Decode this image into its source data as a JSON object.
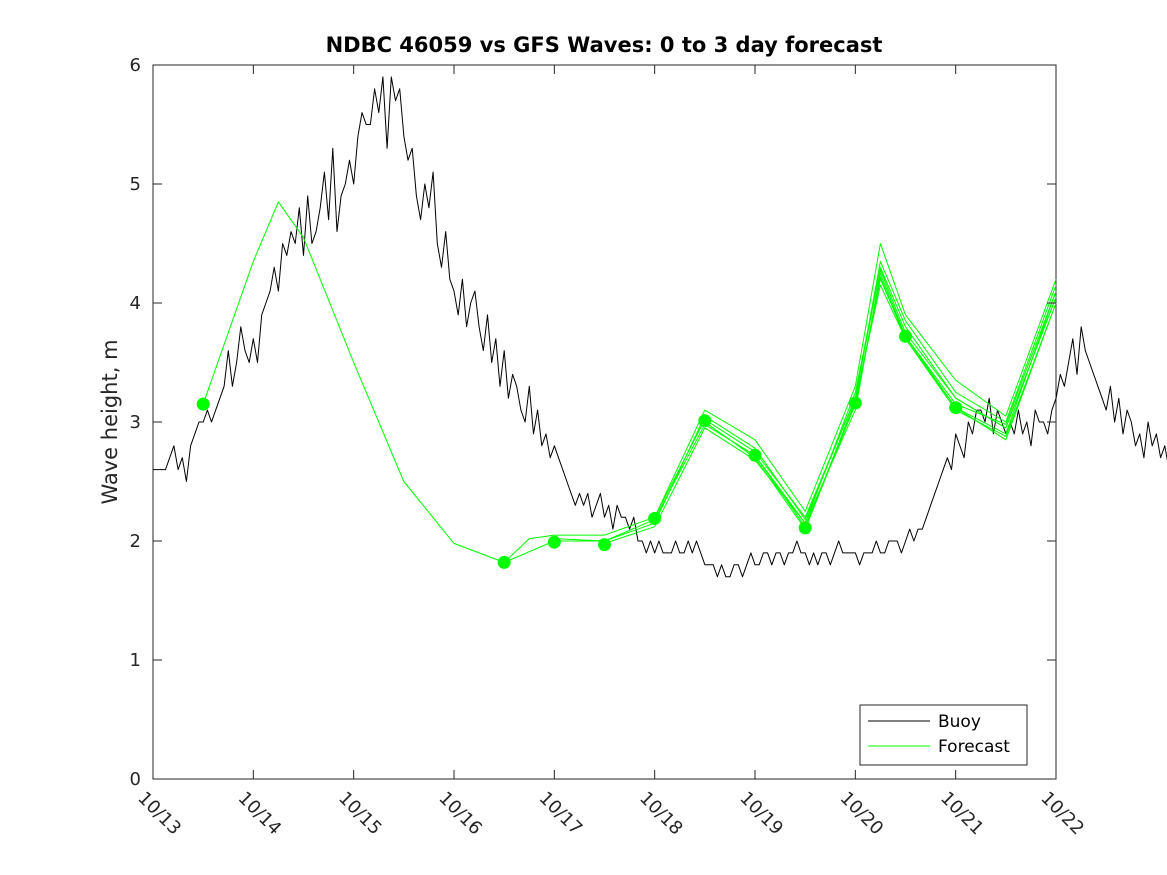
{
  "chart_data": {
    "type": "line",
    "title": "NDBC 46059 vs GFS Waves: 0 to 3 day forecast",
    "xlabel": "",
    "ylabel": "Wave height, m",
    "xlim": [
      0,
      9
    ],
    "ylim": [
      0,
      6
    ],
    "x_tick_values": [
      0,
      1,
      2,
      3,
      4,
      5,
      6,
      7,
      8,
      9
    ],
    "x_tick_labels": [
      "10/13",
      "10/14",
      "10/15",
      "10/16",
      "10/17",
      "10/18",
      "10/19",
      "10/20",
      "10/21",
      "10/22"
    ],
    "y_tick_values": [
      0,
      1,
      2,
      3,
      4,
      5,
      6
    ],
    "y_tick_labels": [
      "0",
      "1",
      "2",
      "3",
      "4",
      "5",
      "6"
    ],
    "x_units": "days since 10/13 00:00",
    "grid": false,
    "legend": {
      "position": "bottom-right",
      "entries": [
        {
          "label": "Buoy",
          "color": "#000000"
        },
        {
          "label": "Forecast",
          "color": "#00ff00"
        }
      ]
    },
    "colors": {
      "buoy": "#000000",
      "forecast": "#00ff00",
      "axes": "#262626"
    },
    "series": [
      {
        "name": "Buoy",
        "color": "#000000",
        "x_start": 0,
        "x_step": 0.04167,
        "values": [
          2.6,
          2.6,
          2.6,
          2.6,
          2.7,
          2.8,
          2.6,
          2.7,
          2.5,
          2.8,
          2.9,
          3.0,
          3.0,
          3.1,
          3.0,
          3.1,
          3.2,
          3.3,
          3.6,
          3.3,
          3.5,
          3.8,
          3.6,
          3.5,
          3.7,
          3.5,
          3.9,
          4.0,
          4.1,
          4.3,
          4.1,
          4.5,
          4.4,
          4.6,
          4.5,
          4.8,
          4.4,
          4.9,
          4.5,
          4.6,
          4.8,
          5.1,
          4.7,
          5.3,
          4.6,
          4.9,
          5.0,
          5.2,
          5.0,
          5.4,
          5.6,
          5.5,
          5.5,
          5.8,
          5.6,
          5.9,
          5.3,
          5.9,
          5.7,
          5.8,
          5.4,
          5.2,
          5.3,
          4.9,
          4.7,
          5.0,
          4.8,
          5.1,
          4.5,
          4.3,
          4.6,
          4.2,
          4.1,
          3.9,
          4.2,
          3.8,
          4.0,
          4.1,
          3.8,
          3.6,
          3.9,
          3.5,
          3.7,
          3.3,
          3.6,
          3.2,
          3.4,
          3.3,
          3.1,
          3.0,
          3.3,
          2.9,
          3.1,
          2.8,
          2.9,
          2.7,
          2.8,
          2.7,
          2.6,
          2.5,
          2.4,
          2.3,
          2.4,
          2.3,
          2.4,
          2.2,
          2.3,
          2.4,
          2.2,
          2.3,
          2.1,
          2.3,
          2.2,
          2.2,
          2.1,
          2.2,
          2.0,
          2.0,
          1.9,
          2.0,
          1.9,
          2.0,
          1.9,
          1.9,
          1.9,
          2.0,
          1.9,
          1.9,
          2.0,
          1.9,
          2.0,
          1.9,
          1.8,
          1.8,
          1.8,
          1.7,
          1.8,
          1.7,
          1.7,
          1.8,
          1.8,
          1.7,
          1.8,
          1.9,
          1.8,
          1.8,
          1.9,
          1.9,
          1.8,
          1.9,
          1.9,
          1.8,
          1.9,
          1.9,
          2.0,
          1.9,
          1.9,
          1.8,
          1.9,
          1.8,
          1.9,
          1.9,
          1.8,
          1.9,
          2.0,
          1.9,
          1.9,
          1.9,
          1.9,
          1.8,
          1.9,
          1.9,
          1.9,
          2.0,
          1.9,
          1.9,
          2.0,
          2.0,
          2.0,
          1.9,
          2.0,
          2.1,
          2.0,
          2.1,
          2.1,
          2.2,
          2.3,
          2.4,
          2.5,
          2.6,
          2.7,
          2.6,
          2.9,
          2.8,
          2.7,
          3.0,
          2.9,
          3.1,
          3.1,
          3.0,
          3.2,
          2.9,
          3.1,
          3.0,
          2.9,
          3.0,
          2.9,
          3.1,
          2.9,
          3.0,
          2.8,
          3.1,
          3.0,
          3.0,
          2.9,
          3.1,
          3.2,
          3.4,
          3.3,
          3.5,
          3.7,
          3.4,
          3.8,
          3.6,
          3.5,
          3.4,
          3.3,
          3.2,
          3.1,
          3.3,
          3.0,
          3.2,
          2.9,
          3.1,
          3.0,
          2.8,
          2.9,
          2.7,
          3.0,
          2.8,
          2.9,
          2.7,
          2.8,
          2.6,
          2.7,
          2.5,
          2.7,
          2.5,
          2.6,
          2.4,
          2.4,
          2.5,
          2.3,
          2.4,
          2.3,
          2.4,
          2.3,
          2.4,
          2.4,
          2.3,
          2.5,
          2.3,
          2.4,
          2.6,
          3.0,
          3.3,
          3.8,
          4.3,
          4.6,
          4.8,
          4.7,
          5.0,
          4.8,
          5.0,
          4.7,
          4.9,
          4.8,
          5.0,
          4.5,
          4.4,
          4.3,
          4.0,
          4.2,
          4.0,
          3.9,
          3.8,
          3.6,
          3.7,
          3.8,
          3.5,
          3.7,
          3.6,
          3.5,
          3.7,
          3.6,
          3.6,
          3.5,
          3.4,
          3.5,
          3.4,
          3.3,
          3.4,
          3.3
        ]
      },
      {
        "name": "Forecast",
        "color": "#00ff00",
        "x": [
          0.5,
          1.0,
          1.25,
          1.5,
          2.0,
          2.5,
          3.0,
          3.5,
          4.0,
          4.5,
          5.0,
          5.5,
          6.0,
          6.5,
          7.0,
          7.25,
          7.5,
          8.0,
          8.5,
          9.0
        ],
        "values": [
          3.15,
          4.35,
          4.85,
          4.55,
          3.5,
          2.5,
          1.98,
          1.82,
          2.0,
          2.0,
          2.18,
          2.98,
          2.72,
          2.12,
          3.15,
          4.2,
          3.72,
          3.12,
          2.9,
          4.1
        ]
      },
      {
        "name": "Forecast",
        "color": "#00ff00",
        "x": [
          3.5,
          3.75,
          4.0,
          4.5,
          5.0,
          5.5,
          6.0,
          6.5,
          7.0,
          7.25,
          7.5,
          8.0,
          8.5,
          9.0
        ],
        "values": [
          1.82,
          2.02,
          2.05,
          2.05,
          2.2,
          3.1,
          2.85,
          2.25,
          3.3,
          4.5,
          3.9,
          3.35,
          3.05,
          4.2
        ]
      },
      {
        "name": "Forecast",
        "color": "#00ff00",
        "x": [
          4.0,
          4.5,
          5.0,
          5.5,
          6.0,
          6.5,
          7.0,
          7.25,
          7.5,
          8.0,
          8.5,
          9.0
        ],
        "values": [
          2.02,
          2.0,
          2.15,
          3.05,
          2.78,
          2.18,
          3.2,
          4.3,
          3.8,
          3.2,
          2.95,
          4.05
        ]
      },
      {
        "name": "Forecast",
        "color": "#00ff00",
        "x": [
          4.5,
          5.0,
          5.5,
          6.0,
          6.5,
          7.0,
          7.25,
          7.5,
          8.0,
          8.5,
          9.0
        ],
        "values": [
          1.98,
          2.12,
          2.95,
          2.68,
          2.15,
          3.1,
          4.25,
          3.72,
          3.15,
          2.98,
          4.1
        ]
      },
      {
        "name": "Forecast",
        "color": "#00ff00",
        "x": [
          5.0,
          5.5,
          6.0,
          6.5,
          7.0,
          7.25,
          7.5,
          8.0,
          8.5,
          9.0
        ],
        "values": [
          2.2,
          3.02,
          2.75,
          2.2,
          3.2,
          4.35,
          3.85,
          3.25,
          3.0,
          4.15
        ]
      },
      {
        "name": "Forecast",
        "color": "#00ff00",
        "x": [
          5.5,
          6.0,
          6.5,
          7.0,
          7.25,
          7.5,
          8.0,
          8.5,
          9.0
        ],
        "values": [
          3.0,
          2.7,
          2.1,
          3.18,
          4.15,
          3.7,
          3.1,
          2.88,
          4.0
        ]
      },
      {
        "name": "Forecast",
        "color": "#00ff00",
        "x": [
          6.0,
          6.5,
          7.0,
          7.25,
          7.5,
          8.0,
          8.5,
          9.0
        ],
        "values": [
          2.72,
          2.15,
          3.25,
          4.28,
          3.75,
          3.2,
          2.95,
          4.05
        ]
      },
      {
        "name": "Forecast",
        "color": "#00ff00",
        "x": [
          6.5,
          7.0,
          7.25,
          7.5,
          8.0,
          8.5,
          9.0
        ],
        "values": [
          2.1,
          3.15,
          4.22,
          3.7,
          3.12,
          2.85,
          4.0
        ]
      }
    ],
    "markers": {
      "name": "Forecast analysis points",
      "color": "#00ff00",
      "x": [
        0.5,
        3.5,
        4.0,
        4.5,
        5.0,
        5.5,
        6.0,
        6.5,
        7.0,
        7.5,
        8.0
      ],
      "values": [
        3.15,
        1.82,
        1.99,
        1.97,
        2.19,
        3.01,
        2.72,
        2.11,
        3.16,
        3.72,
        3.12
      ]
    }
  }
}
